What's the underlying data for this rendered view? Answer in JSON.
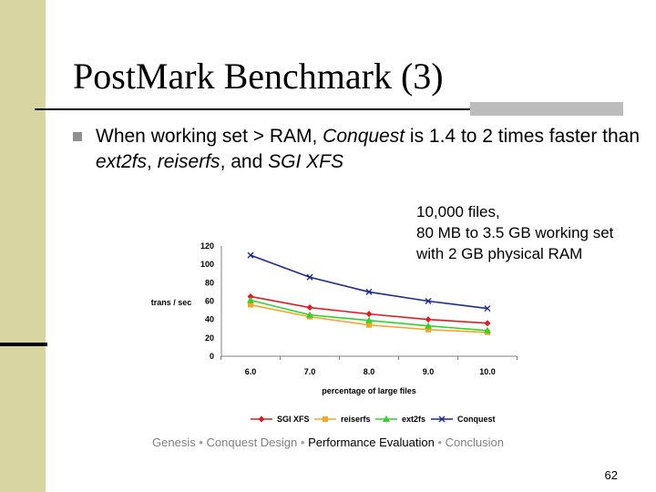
{
  "slide": {
    "title": "PostMark Benchmark (3)",
    "bullet": {
      "t1": "When working set > RAM, ",
      "t2": "Conquest",
      "t3": " is 1.4 to 2 times faster than ",
      "t4": "ext2fs",
      "t5": ", ",
      "t6": "reiserfs",
      "t7": ", and ",
      "t8": "SGI XFS"
    },
    "note": [
      "10,000 files,",
      "80 MB to 3.5 GB working set",
      "with 2 GB physical RAM"
    ],
    "footer": {
      "items": [
        "Genesis",
        "Conquest Design",
        "Performance Evaluation",
        "Conclusion"
      ],
      "separator": "•"
    },
    "page_number": "62"
  },
  "colors": {
    "band": "#d8d5a3",
    "sgi": "#e11b22",
    "reiserfs": "#f5a623",
    "ext2fs": "#33d12b",
    "conquest": "#1c2a8f"
  },
  "chart_data": {
    "type": "line",
    "title": "",
    "xlabel": "percentage of large files",
    "ylabel": "trans / sec",
    "categories": [
      "6.0",
      "7.0",
      "8.0",
      "9.0",
      "10.0"
    ],
    "ylim": [
      0,
      120
    ],
    "yticks": [
      "0",
      "20",
      "40",
      "60",
      "80",
      "100",
      "120"
    ],
    "grid": false,
    "legend": "bottom",
    "series": [
      {
        "name": "SGI XFS",
        "marker": "diamond",
        "color": "#e11b22",
        "values": [
          65,
          53,
          46,
          40,
          36
        ]
      },
      {
        "name": "reiserfs",
        "marker": "square",
        "color": "#f5a623",
        "values": [
          56,
          43,
          34,
          29,
          26
        ]
      },
      {
        "name": "ext2fs",
        "marker": "triangle",
        "color": "#33d12b",
        "values": [
          61,
          45,
          39,
          33,
          28
        ]
      },
      {
        "name": "Conquest",
        "marker": "x",
        "color": "#1c2a8f",
        "values": [
          110,
          86,
          70,
          60,
          52
        ]
      }
    ]
  }
}
